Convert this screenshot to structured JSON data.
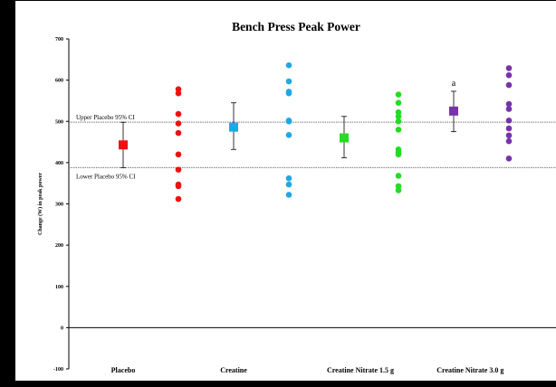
{
  "chart_data": {
    "type": "scatter",
    "title": "Bench Press Peak Power",
    "xlabel": "",
    "ylabel": "Change (W) in peak power",
    "ylim": [
      -100,
      700
    ],
    "yticks": [
      -100,
      0,
      100,
      200,
      300,
      400,
      500,
      600,
      700
    ],
    "grid": false,
    "categories": [
      "Placebo",
      "Creatine",
      "Creatine Nitrate 1.5 g",
      "Creatine Nitrate 3.0 g"
    ],
    "means": [
      {
        "category": "Placebo",
        "value": 443,
        "ci_low": 388,
        "ci_high": 498,
        "color": "#ee1111"
      },
      {
        "category": "Creatine",
        "value": 486,
        "ci_low": 432,
        "ci_high": 545,
        "color": "#1fa8e6"
      },
      {
        "category": "Creatine Nitrate 1.5 g",
        "value": 460,
        "ci_low": 412,
        "ci_high": 512,
        "color": "#22dd22"
      },
      {
        "category": "Creatine Nitrate 3.0 g",
        "value": 525,
        "ci_low": 475,
        "ci_high": 573,
        "color": "#7733aa",
        "annotation": "a"
      }
    ],
    "series": [
      {
        "category": "Placebo",
        "color": "#ee1111",
        "values": [
          578,
          568,
          518,
          495,
          472,
          420,
          383,
          347,
          343,
          312
        ]
      },
      {
        "category": "Creatine",
        "color": "#1fa8e6",
        "values": [
          636,
          597,
          572,
          568,
          502,
          500,
          467,
          362,
          347,
          322
        ]
      },
      {
        "category": "Creatine Nitrate 1.5 g",
        "color": "#22dd22",
        "values": [
          565,
          545,
          522,
          512,
          500,
          480,
          432,
          425,
          420,
          368,
          343,
          333
        ]
      },
      {
        "category": "Creatine Nitrate 3.0 g",
        "color": "#7733aa",
        "values": [
          629,
          612,
          588,
          542,
          530,
          502,
          483,
          466,
          452,
          410
        ]
      }
    ],
    "reference_lines": [
      {
        "label": "Upper Placebo 95% CI",
        "value": 498
      },
      {
        "label": "Lower Placebo 95% CI",
        "value": 388
      }
    ]
  }
}
